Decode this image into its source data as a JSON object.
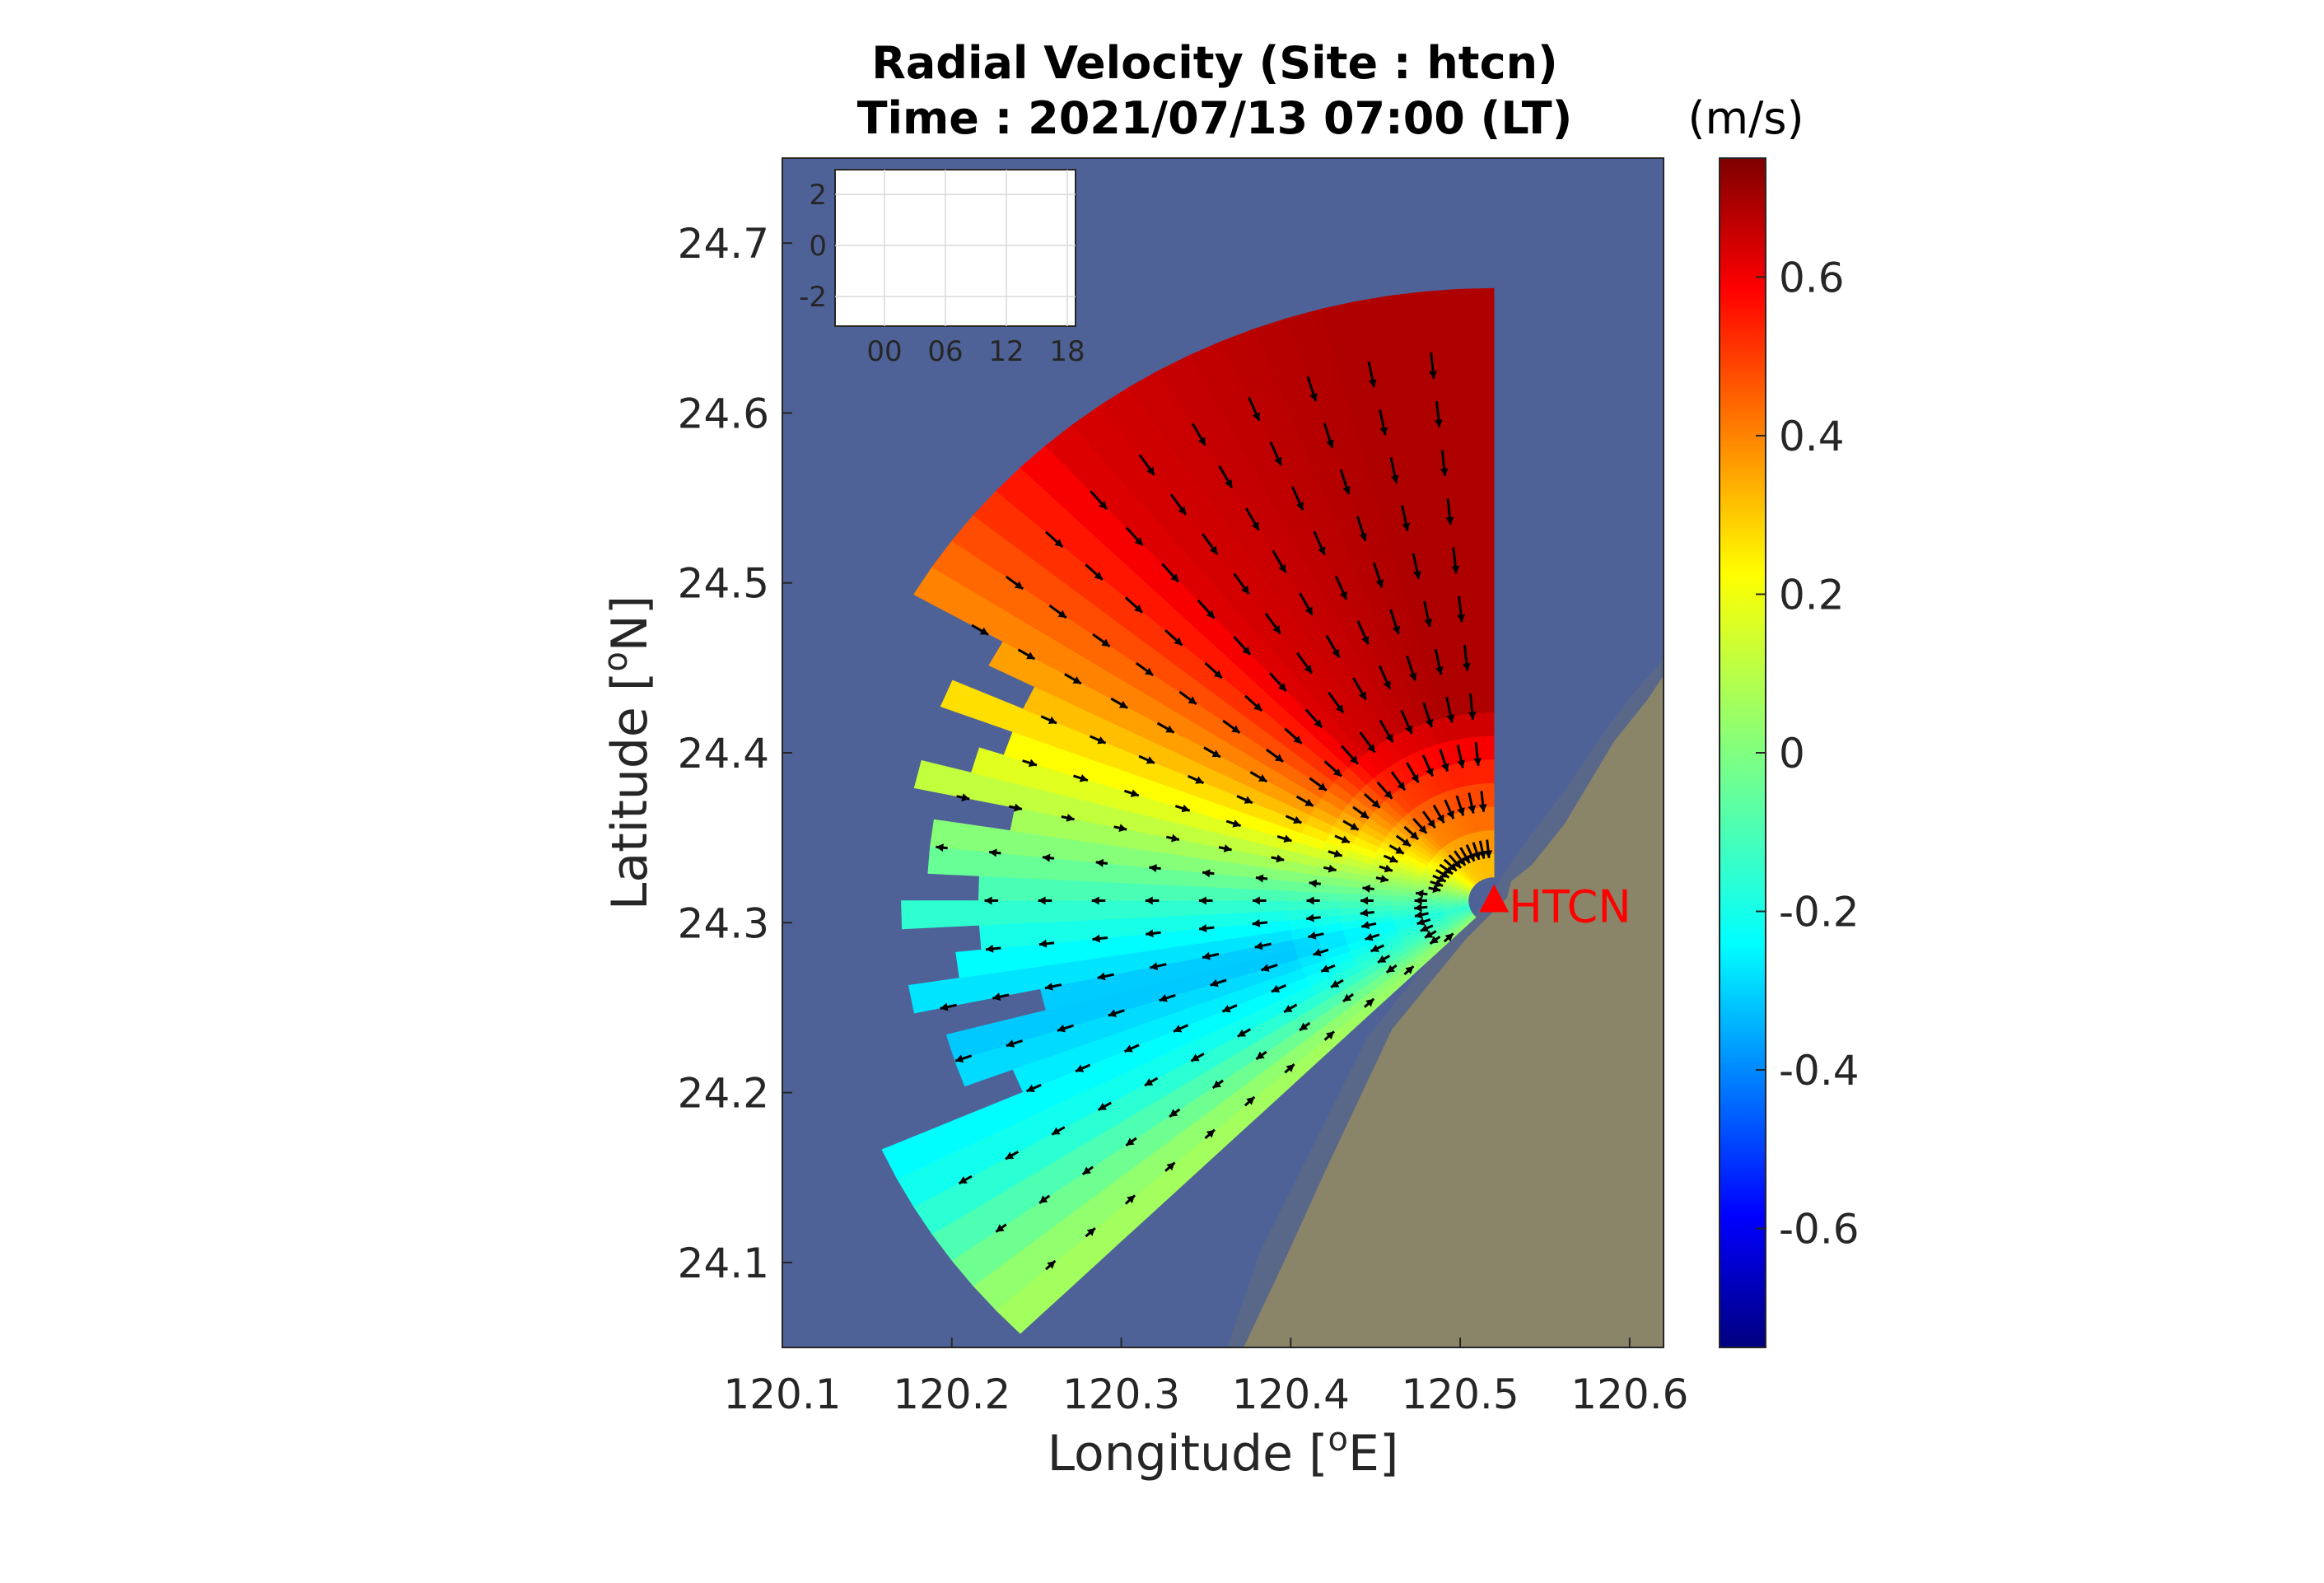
{
  "chart_data": {
    "type": "heatmap",
    "subtype": "radial-velocity-map-with-vectors",
    "title_line1": "Radial Velocity (Site : htcn)",
    "title_line2": "Time : 2021/07/13 07:00 (LT)",
    "xlabel": "Longitude [",
    "xlabel_sup": "o",
    "xlabel_end": "E]",
    "ylabel": "Latitude [",
    "ylabel_sup": "o",
    "ylabel_end": "N]",
    "xlim": [
      120.1,
      120.62
    ],
    "ylim": [
      24.05,
      24.75
    ],
    "xticks": [
      "120.1",
      "120.2",
      "120.3",
      "120.4",
      "120.5",
      "120.6"
    ],
    "yticks": [
      "24.1",
      "24.2",
      "24.3",
      "24.4",
      "24.5",
      "24.6",
      "24.7"
    ],
    "colorbar": {
      "unit": "(m/s)",
      "range": [
        -0.75,
        0.75
      ],
      "ticks": [
        "0.6",
        "0.4",
        "0.2",
        "0",
        "-0.2",
        "-0.4",
        "-0.6"
      ],
      "colormap": "jet"
    },
    "site": {
      "name": "HTCN",
      "lon": 120.52,
      "lat": 24.313,
      "color": "#ff0000"
    },
    "coverage": {
      "center": [
        120.52,
        24.313
      ],
      "bearing_range_deg": [
        225,
        360
      ],
      "max_range_km": 40
    },
    "velocity_pattern": [
      {
        "bearing_deg": 345,
        "value": 0.68
      },
      {
        "bearing_deg": 320,
        "value": 0.62
      },
      {
        "bearing_deg": 300,
        "value": 0.35
      },
      {
        "bearing_deg": 285,
        "value": 0.12
      },
      {
        "bearing_deg": 270,
        "value": -0.1
      },
      {
        "bearing_deg": 255,
        "value": -0.28
      },
      {
        "bearing_deg": 240,
        "value": -0.15
      },
      {
        "bearing_deg": 228,
        "value": 0.05
      }
    ],
    "inset": {
      "xticks": [
        "00",
        "06",
        "12",
        "18"
      ],
      "yticks": [
        "2",
        "0",
        "-2"
      ]
    },
    "colors": {
      "sea": "#4f6298",
      "land": "#8a8468",
      "vector": "#000000"
    }
  }
}
